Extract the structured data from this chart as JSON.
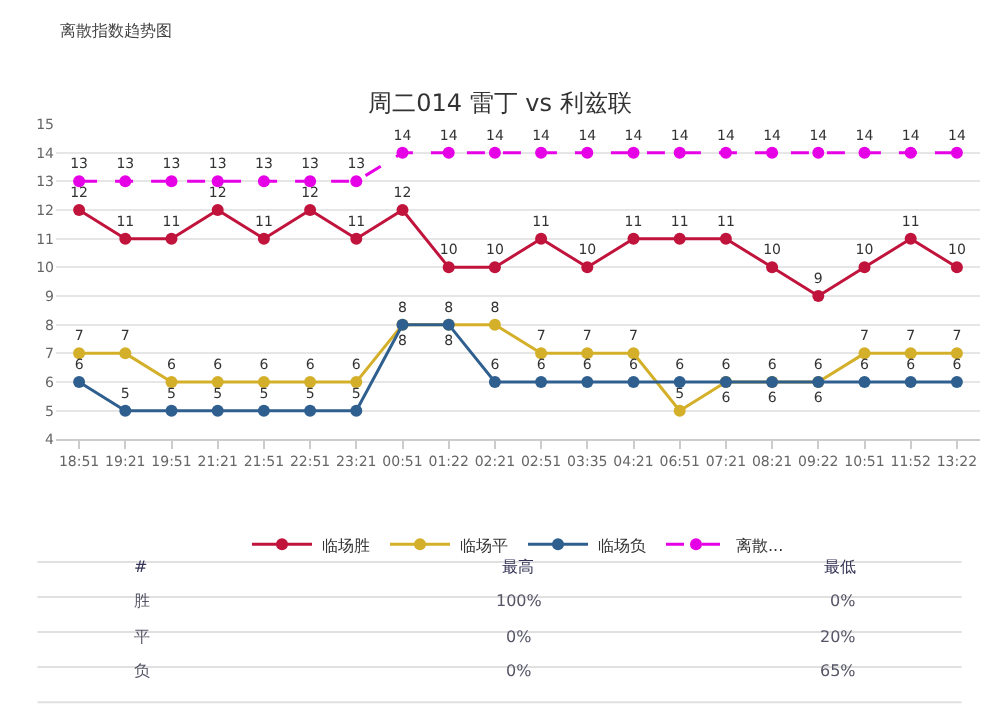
{
  "chart_data": {
    "type": "line",
    "title": "周二014 雷丁 vs 利兹联",
    "categories": [
      "18:51",
      "19:21",
      "19:51",
      "21:21",
      "21:51",
      "22:51",
      "23:21",
      "00:51",
      "01:22",
      "02:21",
      "02:51",
      "03:35",
      "04:21",
      "06:51",
      "07:21",
      "08:21",
      "09:22",
      "10:51",
      "11:52",
      "13:22"
    ],
    "series": [
      {
        "name": "临场胜",
        "color": "#c0143c",
        "values": [
          12,
          11,
          11,
          12,
          11,
          12,
          11,
          12,
          10,
          10,
          11,
          10,
          11,
          11,
          11,
          10,
          9,
          10,
          11,
          10
        ]
      },
      {
        "name": "临场平",
        "color": "#d4b02a",
        "values": [
          7,
          7,
          6,
          6,
          6,
          6,
          6,
          8,
          8,
          8,
          7,
          7,
          7,
          5,
          6,
          6,
          6,
          7,
          7,
          7
        ]
      },
      {
        "name": "临场负",
        "color": "#2f5f8f",
        "values": [
          6,
          5,
          5,
          5,
          5,
          5,
          5,
          8,
          8,
          6,
          6,
          6,
          6,
          6,
          6,
          6,
          6,
          6,
          6,
          6
        ]
      },
      {
        "name": "离散...",
        "color": "#e600e6",
        "line_style": "dashed",
        "values": [
          13,
          13,
          13,
          13,
          13,
          13,
          13,
          14,
          14,
          14,
          14,
          14,
          14,
          14,
          14,
          14,
          14,
          14,
          14,
          14
        ]
      }
    ],
    "ylim": [
      4,
      15
    ],
    "yticks": [
      4,
      5,
      6,
      7,
      8,
      9,
      10,
      11,
      12,
      13,
      14,
      15
    ],
    "grid": "y",
    "legend": "bottom",
    "marker": "circle",
    "line_style": "solid",
    "data_labels": true,
    "annotations": [
      "离散指数趋势图",
      "#",
      "最高",
      "最低",
      "胜",
      "100%",
      "0%",
      "平",
      "0%",
      "20%",
      "负",
      "0%",
      "65%"
    ]
  }
}
